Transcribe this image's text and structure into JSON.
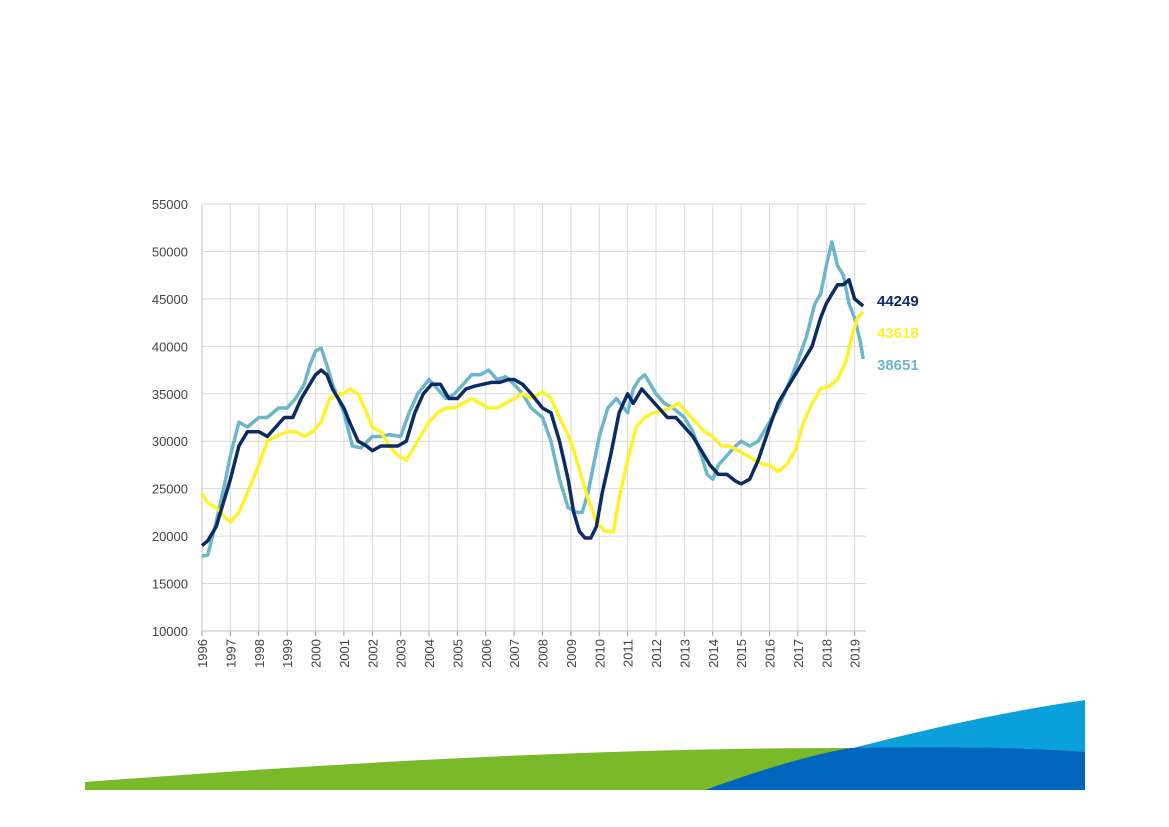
{
  "chart_data": {
    "type": "line",
    "title": "",
    "xlabel": "",
    "ylabel": "",
    "xlim": [
      1996,
      2019.4
    ],
    "ylim": [
      10000,
      55000
    ],
    "y_ticks": [
      "10000",
      "15000",
      "20000",
      "25000",
      "30000",
      "35000",
      "40000",
      "45000",
      "50000",
      "55000"
    ],
    "x_ticks": [
      "1996",
      "1997",
      "1998",
      "1999",
      "2000",
      "2001",
      "2002",
      "2003",
      "2004",
      "2005",
      "2006",
      "2007",
      "2008",
      "2009",
      "2010",
      "2011",
      "2012",
      "2013",
      "2014",
      "2015",
      "2016",
      "2017",
      "2018",
      "2019"
    ],
    "grid": true,
    "series": [
      {
        "color": "#6cb6c9",
        "end_label": "38651",
        "x": [
          1996.0,
          1996.2,
          1996.5,
          1996.8,
          1997.0,
          1997.3,
          1997.6,
          1998.0,
          1998.3,
          1998.7,
          1999.0,
          1999.3,
          1999.6,
          1999.8,
          2000.0,
          2000.2,
          2000.4,
          2000.6,
          2000.8,
          2001.0,
          2001.3,
          2001.6,
          2002.0,
          2002.3,
          2002.6,
          2003.0,
          2003.3,
          2003.6,
          2004.0,
          2004.3,
          2004.6,
          2004.9,
          2005.2,
          2005.5,
          2005.8,
          2006.1,
          2006.4,
          2006.7,
          2007.0,
          2007.3,
          2007.6,
          2008.0,
          2008.3,
          2008.6,
          2008.9,
          2009.2,
          2009.4,
          2009.6,
          2009.8,
          2010.0,
          2010.3,
          2010.6,
          2011.0,
          2011.2,
          2011.4,
          2011.6,
          2011.8,
          2012.0,
          2012.3,
          2012.6,
          2013.0,
          2013.3,
          2013.6,
          2013.8,
          2014.0,
          2014.2,
          2014.5,
          2014.8,
          2015.0,
          2015.3,
          2015.6,
          2016.0,
          2016.3,
          2016.6,
          2017.0,
          2017.3,
          2017.6,
          2017.8,
          2018.0,
          2018.2,
          2018.4,
          2018.6,
          2018.8,
          2019.0,
          2019.2,
          2019.3
        ],
        "y": [
          17900,
          18000,
          21500,
          25500,
          28500,
          32000,
          31500,
          32500,
          32500,
          33500,
          33500,
          34500,
          36000,
          38000,
          39500,
          39800,
          38000,
          36000,
          34500,
          33000,
          29500,
          29300,
          30500,
          30500,
          30700,
          30500,
          33000,
          35000,
          36500,
          35500,
          34500,
          35000,
          36000,
          37000,
          37000,
          37500,
          36500,
          36800,
          36000,
          35000,
          33500,
          32500,
          30000,
          26000,
          23000,
          22500,
          22500,
          24500,
          27500,
          30500,
          33500,
          34500,
          33000,
          35500,
          36500,
          37000,
          36000,
          35000,
          34000,
          33500,
          32500,
          31000,
          28500,
          26500,
          26000,
          27500,
          28500,
          29500,
          30000,
          29500,
          30000,
          32000,
          33500,
          35500,
          38500,
          41000,
          44500,
          45500,
          48500,
          51000,
          48500,
          47500,
          44500,
          43000,
          40500,
          38651
        ]
      },
      {
        "color": "#fff22a",
        "end_label": "43618",
        "x": [
          1996.0,
          1996.2,
          1996.5,
          1996.8,
          1997.0,
          1997.3,
          1997.6,
          1998.0,
          1998.3,
          1998.6,
          1999.0,
          1999.3,
          1999.6,
          1999.9,
          2000.2,
          2000.5,
          2000.8,
          2001.0,
          2001.2,
          2001.5,
          2001.8,
          2002.0,
          2002.3,
          2002.6,
          2002.9,
          2003.2,
          2003.5,
          2003.8,
          2004.0,
          2004.3,
          2004.6,
          2004.9,
          2005.2,
          2005.5,
          2005.8,
          2006.1,
          2006.4,
          2006.7,
          2007.0,
          2007.3,
          2007.6,
          2008.0,
          2008.3,
          2008.6,
          2009.0,
          2009.3,
          2009.6,
          2009.9,
          2010.2,
          2010.5,
          2010.7,
          2011.0,
          2011.3,
          2011.6,
          2011.9,
          2012.2,
          2012.5,
          2012.8,
          2013.1,
          2013.4,
          2013.7,
          2014.0,
          2014.3,
          2014.6,
          2014.9,
          2015.2,
          2015.5,
          2015.8,
          2016.0,
          2016.3,
          2016.6,
          2016.9,
          2017.2,
          2017.5,
          2017.8,
          2018.1,
          2018.4,
          2018.7,
          2018.9,
          2019.1,
          2019.3
        ],
        "y": [
          24500,
          23500,
          23000,
          22000,
          21500,
          22500,
          24500,
          27500,
          30000,
          30500,
          31000,
          31000,
          30500,
          31000,
          32000,
          34500,
          35000,
          35000,
          35500,
          35000,
          33000,
          31500,
          31000,
          29500,
          28500,
          28000,
          29500,
          31000,
          32000,
          33000,
          33500,
          33500,
          34000,
          34500,
          34000,
          33500,
          33500,
          34000,
          34500,
          35000,
          34500,
          35200,
          34500,
          32500,
          30000,
          27000,
          24000,
          21500,
          20500,
          20500,
          24000,
          28000,
          31500,
          32500,
          33000,
          33200,
          33500,
          34000,
          33000,
          32000,
          31000,
          30500,
          29500,
          29500,
          29000,
          28500,
          28000,
          27500,
          27500,
          26800,
          27500,
          29000,
          32000,
          34000,
          35500,
          35800,
          36500,
          38500,
          41000,
          43000,
          43618
        ]
      },
      {
        "color": "#0d2b63",
        "end_label": "44249",
        "x": [
          1996.0,
          1996.2,
          1996.5,
          1996.8,
          1997.0,
          1997.3,
          1997.6,
          1998.0,
          1998.3,
          1998.6,
          1998.9,
          1999.2,
          1999.5,
          1999.7,
          2000.0,
          2000.2,
          2000.4,
          2000.6,
          2000.8,
          2001.0,
          2001.2,
          2001.5,
          2001.8,
          2002.0,
          2002.3,
          2002.6,
          2002.9,
          2003.2,
          2003.5,
          2003.8,
          2004.1,
          2004.4,
          2004.7,
          2005.0,
          2005.3,
          2005.6,
          2005.9,
          2006.2,
          2006.5,
          2006.8,
          2007.0,
          2007.3,
          2007.6,
          2008.0,
          2008.3,
          2008.6,
          2008.9,
          2009.1,
          2009.3,
          2009.5,
          2009.7,
          2009.9,
          2010.1,
          2010.4,
          2010.7,
          2011.0,
          2011.2,
          2011.5,
          2011.8,
          2012.1,
          2012.4,
          2012.7,
          2013.0,
          2013.3,
          2013.6,
          2013.9,
          2014.2,
          2014.5,
          2014.8,
          2015.0,
          2015.3,
          2015.6,
          2016.0,
          2016.3,
          2016.6,
          2016.9,
          2017.2,
          2017.5,
          2017.8,
          2018.0,
          2018.2,
          2018.4,
          2018.6,
          2018.8,
          2019.0,
          2019.2,
          2019.3
        ],
        "y": [
          19000,
          19500,
          21000,
          24000,
          26000,
          29500,
          31000,
          31000,
          30500,
          31500,
          32500,
          32500,
          34500,
          35500,
          37000,
          37500,
          37000,
          35500,
          34500,
          33500,
          32000,
          30000,
          29500,
          29000,
          29500,
          29500,
          29500,
          30000,
          33000,
          35000,
          36000,
          36000,
          34500,
          34500,
          35500,
          35800,
          36000,
          36200,
          36200,
          36500,
          36500,
          36000,
          35000,
          33500,
          33000,
          30000,
          26000,
          22500,
          20500,
          19800,
          19800,
          21000,
          24500,
          28500,
          33000,
          35000,
          34000,
          35500,
          34500,
          33500,
          32500,
          32500,
          31500,
          30500,
          29000,
          27500,
          26500,
          26500,
          25800,
          25500,
          26000,
          28000,
          31500,
          34000,
          35500,
          37000,
          38500,
          40000,
          43000,
          44500,
          45500,
          46500,
          46500,
          47000,
          45000,
          44500,
          44249
        ]
      }
    ]
  }
}
